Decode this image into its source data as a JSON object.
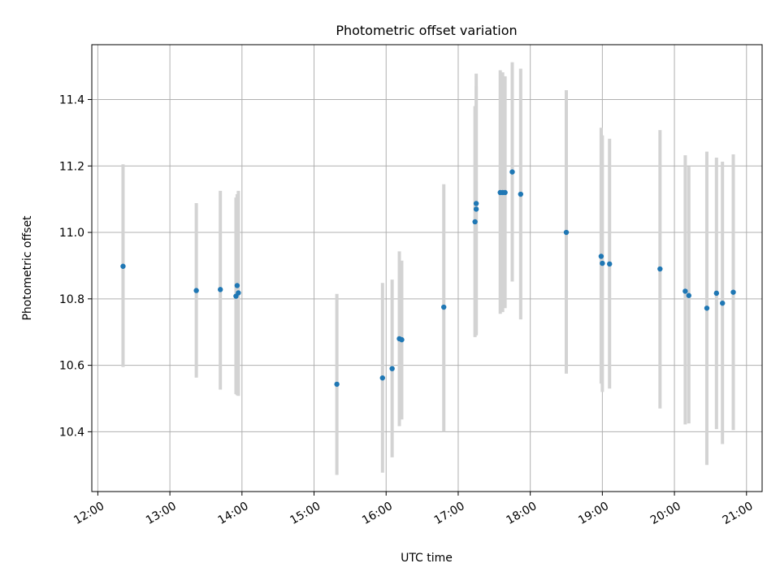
{
  "chart_data": {
    "type": "scatter",
    "title": "Photometric offset variation",
    "xlabel": "UTC time",
    "ylabel": "Photometric offset",
    "x_tick_labels": [
      "12:00",
      "13:00",
      "14:00",
      "15:00",
      "16:00",
      "17:00",
      "18:00",
      "19:00",
      "20:00",
      "21:00"
    ],
    "y_tick_labels": [
      "10.4",
      "10.6",
      "10.8",
      "11.0",
      "11.2",
      "11.4"
    ],
    "xlim": [
      "11:55",
      "21:13"
    ],
    "ylim": [
      10.22,
      11.565
    ],
    "grid": true,
    "colors": {
      "points": "#1f77b4",
      "errorbars": "#d3d3d3",
      "grid": "#b0b0b0"
    },
    "series": [
      {
        "points": [
          {
            "t": "12:21",
            "y": 10.898,
            "lo": 10.595,
            "hi": 11.205
          },
          {
            "t": "13:22",
            "y": 10.825,
            "lo": 10.563,
            "hi": 11.088
          },
          {
            "t": "13:42",
            "y": 10.828,
            "lo": 10.527,
            "hi": 11.125
          },
          {
            "t": "13:55",
            "y": 10.808,
            "lo": 10.513,
            "hi": 11.105
          },
          {
            "t": "13:56",
            "y": 10.84,
            "lo": 10.51,
            "hi": 11.115
          },
          {
            "t": "13:57",
            "y": 10.818,
            "lo": 10.508,
            "hi": 11.125
          },
          {
            "t": "15:19",
            "y": 10.543,
            "lo": 10.27,
            "hi": 10.815
          },
          {
            "t": "15:57",
            "y": 10.562,
            "lo": 10.277,
            "hi": 10.848
          },
          {
            "t": "16:05",
            "y": 10.59,
            "lo": 10.323,
            "hi": 10.858
          },
          {
            "t": "16:11",
            "y": 10.68,
            "lo": 10.417,
            "hi": 10.943
          },
          {
            "t": "16:13",
            "y": 10.677,
            "lo": 10.437,
            "hi": 10.915
          },
          {
            "t": "16:48",
            "y": 10.775,
            "lo": 10.4,
            "hi": 11.145
          },
          {
            "t": "17:14",
            "y": 11.032,
            "lo": 10.685,
            "hi": 11.38
          },
          {
            "t": "17:15",
            "y": 11.07,
            "lo": 10.69,
            "hi": 11.44
          },
          {
            "t": "17:15",
            "y": 11.087,
            "lo": 10.695,
            "hi": 11.478
          },
          {
            "t": "17:35",
            "y": 11.12,
            "lo": 10.755,
            "hi": 11.488
          },
          {
            "t": "17:37",
            "y": 11.12,
            "lo": 10.76,
            "hi": 11.482
          },
          {
            "t": "17:39",
            "y": 11.12,
            "lo": 10.772,
            "hi": 11.47
          },
          {
            "t": "17:45",
            "y": 11.182,
            "lo": 10.852,
            "hi": 11.512
          },
          {
            "t": "17:52",
            "y": 11.115,
            "lo": 10.738,
            "hi": 11.493
          },
          {
            "t": "18:30",
            "y": 11.0,
            "lo": 10.575,
            "hi": 11.428
          },
          {
            "t": "18:59",
            "y": 10.928,
            "lo": 10.545,
            "hi": 11.315
          },
          {
            "t": "19:00",
            "y": 10.907,
            "lo": 10.52,
            "hi": 11.292
          },
          {
            "t": "19:06",
            "y": 10.905,
            "lo": 10.53,
            "hi": 11.282
          },
          {
            "t": "19:48",
            "y": 10.89,
            "lo": 10.47,
            "hi": 11.308
          },
          {
            "t": "20:09",
            "y": 10.823,
            "lo": 10.422,
            "hi": 11.232
          },
          {
            "t": "20:12",
            "y": 10.81,
            "lo": 10.425,
            "hi": 11.198
          },
          {
            "t": "20:27",
            "y": 10.772,
            "lo": 10.3,
            "hi": 11.243
          },
          {
            "t": "20:35",
            "y": 10.817,
            "lo": 10.408,
            "hi": 11.225
          },
          {
            "t": "20:40",
            "y": 10.787,
            "lo": 10.363,
            "hi": 11.213
          },
          {
            "t": "20:49",
            "y": 10.82,
            "lo": 10.405,
            "hi": 11.235
          }
        ]
      }
    ]
  }
}
